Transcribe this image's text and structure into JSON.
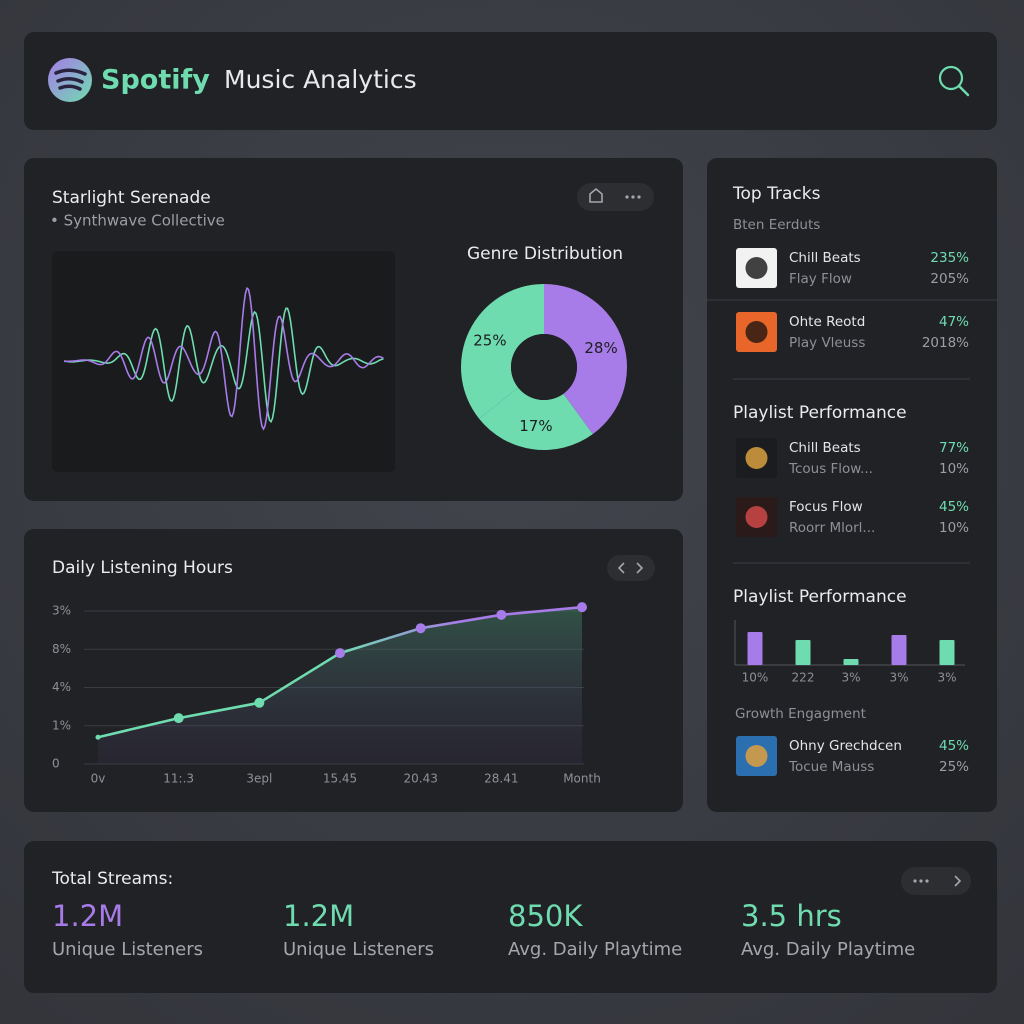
{
  "header": {
    "brand": "Spotify",
    "title": "Music Analytics"
  },
  "now_playing": {
    "track": "Starlight Serenade",
    "artist": "• Synthwave Collective"
  },
  "chart_data": [
    {
      "type": "pie",
      "title": "Genre Distribution",
      "values": [
        28,
        17,
        25
      ],
      "value_labels": [
        "28%",
        "17%",
        "25%"
      ],
      "colors": [
        "#a77be8",
        "#6fdcb0",
        "#6fdcb0"
      ],
      "donut": true
    },
    {
      "type": "line",
      "title": "Daily Listening Hours",
      "categories": [
        "0v",
        "11:.3",
        "3epl",
        "15.45",
        "20.43",
        "28.41",
        "Month"
      ],
      "values": [
        0.7,
        1.2,
        1.6,
        2.9,
        3.55,
        3.9,
        4.1
      ],
      "ylim": [
        0,
        4.2
      ],
      "yticks": [
        0,
        {
          "value": 1,
          "label": "1%"
        },
        {
          "value": 2,
          "label": "4%"
        },
        {
          "value": 3,
          "label": "8%"
        },
        {
          "value": 4,
          "label": "3%"
        }
      ],
      "grid": true,
      "colors": [
        "#6fdcb0",
        "#a77be8"
      ],
      "area": true
    },
    {
      "type": "bar",
      "title": "Playlist Performance",
      "categories": [
        "10%",
        "222",
        "3%",
        "3%",
        "3%"
      ],
      "values": [
        33,
        25,
        6,
        30,
        25
      ],
      "ylim": [
        0,
        35
      ],
      "colors": [
        "#a77be8",
        "#6fdcb0",
        "#6fdcb0",
        "#a77be8",
        "#6fdcb0"
      ]
    }
  ],
  "top_tracks": {
    "title": "Top Tracks",
    "subtitle": "Bten Eerduts",
    "items": [
      {
        "title": "Chill Beats",
        "subtitle": "Flay Flow",
        "value": "235%",
        "secondary": "205%"
      },
      {
        "title": "Ohte Reotd",
        "subtitle": "Play Vleuss",
        "value": "47%",
        "secondary": "2018%"
      }
    ]
  },
  "playlist_performance": {
    "title": "Playlist Performance",
    "items": [
      {
        "title": "Chill Beats",
        "subtitle": "Tcous Flow...",
        "value": "77%",
        "secondary": "10%"
      },
      {
        "title": "Focus Flow",
        "subtitle": "Roorr Mlorl...",
        "value": "45%",
        "secondary": "10%"
      }
    ]
  },
  "growth_engagement": {
    "title": "Growth Engagment",
    "items": [
      {
        "title": "Ohny Grechdcen",
        "subtitle": "Tocue Mauss",
        "value": "45%",
        "secondary": "25%"
      }
    ]
  },
  "stats": {
    "title": "Total Streams:",
    "items": [
      {
        "value": "1.2M",
        "label": "Unique Listeners"
      },
      {
        "value": "1.2M",
        "label": "Unique Listeners"
      },
      {
        "value": "850K",
        "label": "Avg. Daily Playtime"
      },
      {
        "value": "3.5 hrs",
        "label": "Avg. Daily Playtime"
      }
    ]
  }
}
